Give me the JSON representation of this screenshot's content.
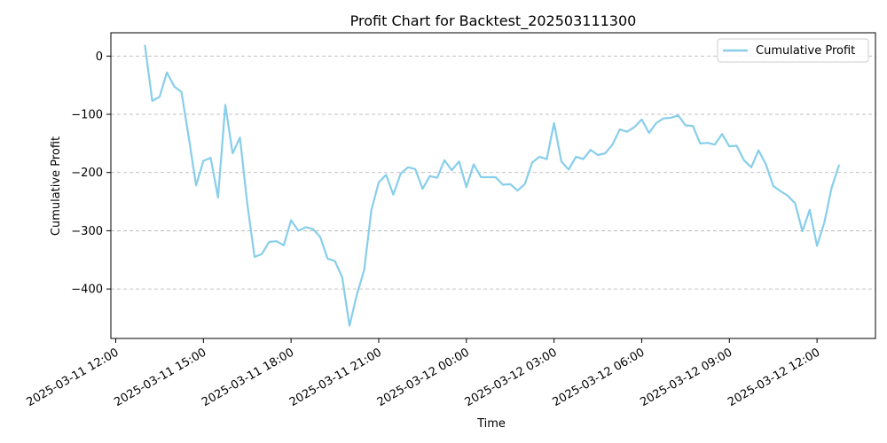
{
  "chart_data": {
    "type": "line",
    "title": "Profit Chart for Backtest_202503111300",
    "xlabel": "Time",
    "ylabel": "Cumulative Profit",
    "xlim": [
      "2025-03-11 11:50",
      "2025-03-12 14:00"
    ],
    "ylim": [
      -485,
      40
    ],
    "grid": "y-dashed",
    "legend_position": "top-right",
    "x_ticks": [
      {
        "value": "2025-03-11 12:00",
        "label": "2025-03-11 12:00"
      },
      {
        "value": "2025-03-11 15:00",
        "label": "2025-03-11 15:00"
      },
      {
        "value": "2025-03-11 18:00",
        "label": "2025-03-11 18:00"
      },
      {
        "value": "2025-03-11 21:00",
        "label": "2025-03-11 21:00"
      },
      {
        "value": "2025-03-12 00:00",
        "label": "2025-03-12 00:00"
      },
      {
        "value": "2025-03-12 03:00",
        "label": "2025-03-12 03:00"
      },
      {
        "value": "2025-03-12 06:00",
        "label": "2025-03-12 06:00"
      },
      {
        "value": "2025-03-12 09:00",
        "label": "2025-03-12 09:00"
      },
      {
        "value": "2025-03-12 12:00",
        "label": "2025-03-12 12:00"
      }
    ],
    "y_ticks": [
      0,
      -100,
      -200,
      -300,
      -400
    ],
    "series": [
      {
        "name": "Cumulative Profit",
        "color": "#87ceeb",
        "x": [
          "2025-03-11 13:00",
          "2025-03-11 13:15",
          "2025-03-11 13:30",
          "2025-03-11 13:45",
          "2025-03-11 14:00",
          "2025-03-11 14:15",
          "2025-03-11 14:30",
          "2025-03-11 14:45",
          "2025-03-11 15:00",
          "2025-03-11 15:15",
          "2025-03-11 15:30",
          "2025-03-11 15:45",
          "2025-03-11 16:00",
          "2025-03-11 16:15",
          "2025-03-11 16:30",
          "2025-03-11 16:45",
          "2025-03-11 17:00",
          "2025-03-11 17:15",
          "2025-03-11 17:30",
          "2025-03-11 17:45",
          "2025-03-11 18:00",
          "2025-03-11 18:15",
          "2025-03-11 18:30",
          "2025-03-11 18:45",
          "2025-03-11 19:00",
          "2025-03-11 19:15",
          "2025-03-11 19:30",
          "2025-03-11 19:45",
          "2025-03-11 20:00",
          "2025-03-11 20:15",
          "2025-03-11 20:30",
          "2025-03-11 20:45",
          "2025-03-11 21:00",
          "2025-03-11 21:15",
          "2025-03-11 21:30",
          "2025-03-11 21:45",
          "2025-03-11 22:00",
          "2025-03-11 22:15",
          "2025-03-11 22:30",
          "2025-03-11 22:45",
          "2025-03-11 23:00",
          "2025-03-11 23:15",
          "2025-03-11 23:30",
          "2025-03-11 23:45",
          "2025-03-12 00:00",
          "2025-03-12 00:15",
          "2025-03-12 00:30",
          "2025-03-12 00:45",
          "2025-03-12 01:00",
          "2025-03-12 01:15",
          "2025-03-12 01:30",
          "2025-03-12 01:45",
          "2025-03-12 02:00",
          "2025-03-12 02:15",
          "2025-03-12 02:30",
          "2025-03-12 02:45",
          "2025-03-12 03:00",
          "2025-03-12 03:15",
          "2025-03-12 03:30",
          "2025-03-12 03:45",
          "2025-03-12 04:00",
          "2025-03-12 04:15",
          "2025-03-12 04:30",
          "2025-03-12 04:45",
          "2025-03-12 05:00",
          "2025-03-12 05:15",
          "2025-03-12 05:30",
          "2025-03-12 05:45",
          "2025-03-12 06:00",
          "2025-03-12 06:15",
          "2025-03-12 06:30",
          "2025-03-12 06:45",
          "2025-03-12 07:00",
          "2025-03-12 07:15",
          "2025-03-12 07:30",
          "2025-03-12 07:45",
          "2025-03-12 08:00",
          "2025-03-12 08:15",
          "2025-03-12 08:30",
          "2025-03-12 08:45",
          "2025-03-12 09:00",
          "2025-03-12 09:15",
          "2025-03-12 09:30",
          "2025-03-12 09:45",
          "2025-03-12 10:00",
          "2025-03-12 10:15",
          "2025-03-12 10:30",
          "2025-03-12 10:45",
          "2025-03-12 11:00",
          "2025-03-12 11:15",
          "2025-03-12 11:30",
          "2025-03-12 11:45",
          "2025-03-12 12:00",
          "2025-03-12 12:15",
          "2025-03-12 12:30",
          "2025-03-12 12:45"
        ],
        "y": [
          18,
          -77,
          -70,
          -28,
          -52,
          -62,
          -140,
          -222,
          -180,
          -175,
          -243,
          -84,
          -167,
          -140,
          -253,
          -345,
          -340,
          -319,
          -318,
          -325,
          -282,
          -300,
          -294,
          -297,
          -311,
          -348,
          -352,
          -380,
          -463,
          -410,
          -368,
          -264,
          -217,
          -204,
          -238,
          -202,
          -191,
          -194,
          -228,
          -206,
          -209,
          -179,
          -196,
          -181,
          -225,
          -186,
          -208,
          -208,
          -208,
          -221,
          -220,
          -231,
          -220,
          -183,
          -173,
          -177,
          -115,
          -181,
          -195,
          -173,
          -177,
          -161,
          -170,
          -167,
          -152,
          -126,
          -130,
          -122,
          -109,
          -132,
          -115,
          -107,
          -106,
          -102,
          -119,
          -120,
          -150,
          -149,
          -152,
          -134,
          -155,
          -154,
          -179,
          -191,
          -162,
          -186,
          -223,
          -232,
          -240,
          -253,
          -301,
          -264,
          -326,
          -286,
          -226,
          -188
        ]
      }
    ]
  }
}
